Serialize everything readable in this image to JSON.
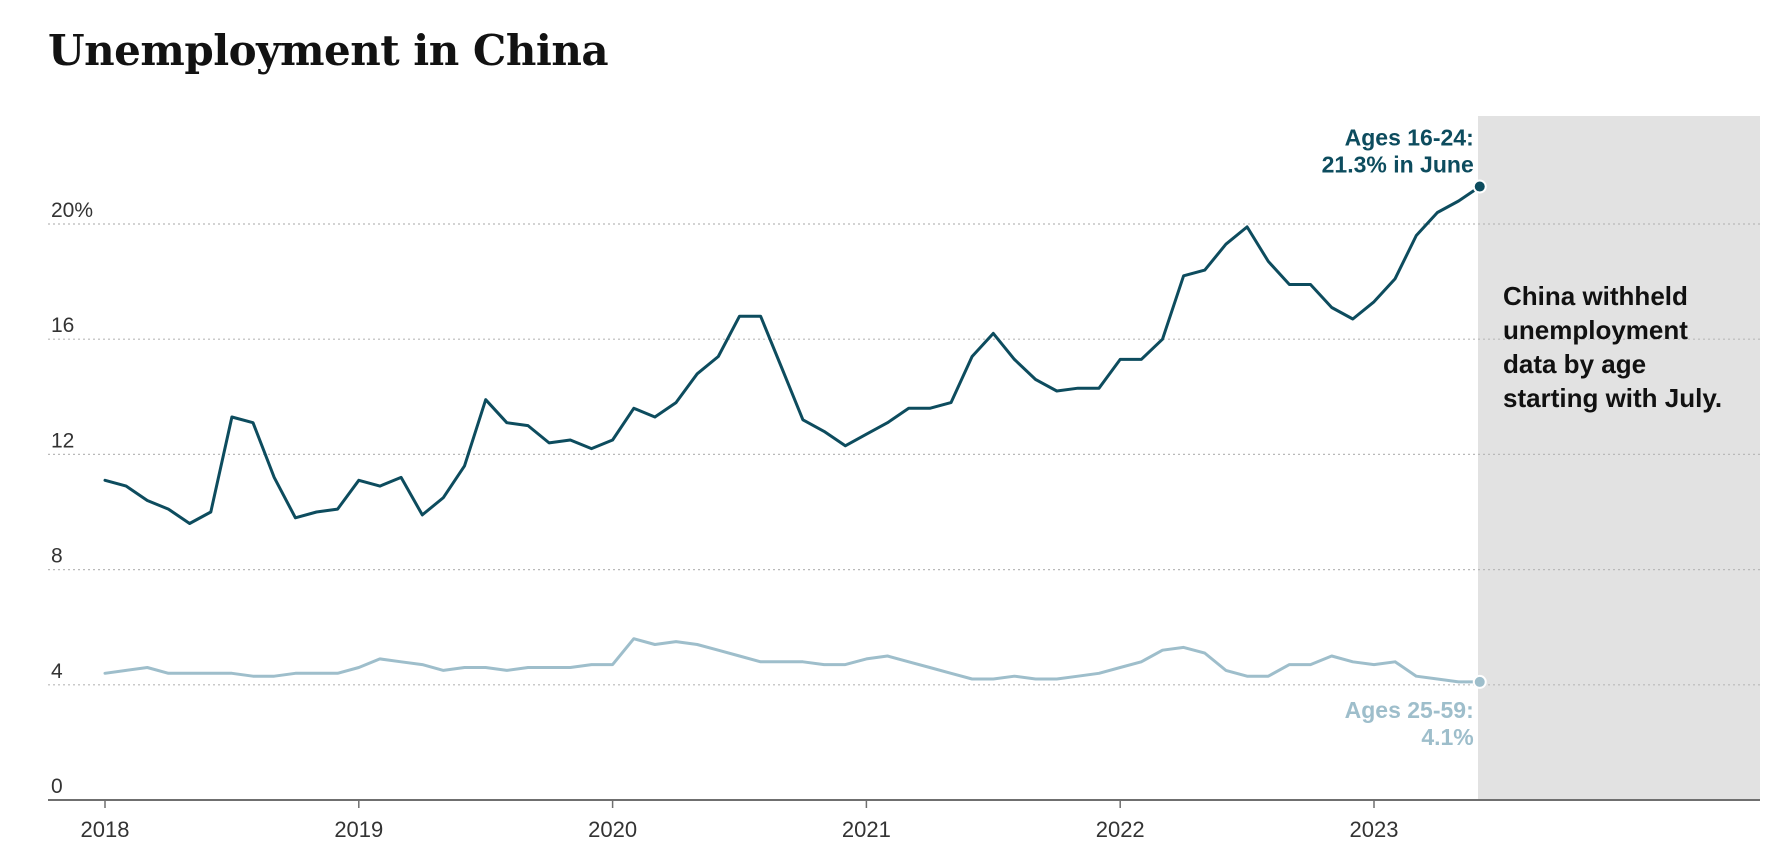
{
  "chart_data": {
    "type": "line",
    "title": "Unemployment in China",
    "xlabel": "",
    "ylabel": "",
    "ylim": [
      0,
      24
    ],
    "y_ticks": [
      "0",
      "4",
      "8",
      "12",
      "16",
      "20%"
    ],
    "y_tick_values": [
      0,
      4,
      8,
      12,
      16,
      20
    ],
    "x_ticks": [
      "2018",
      "2019",
      "2020",
      "2021",
      "2022",
      "2023"
    ],
    "x_start": "2018-01",
    "grid": true,
    "series": [
      {
        "name": "Ages 16-24",
        "color": "#0d4c5e",
        "end_label": [
          "Ages 16-24:",
          "21.3% in June"
        ],
        "values": [
          11.1,
          10.9,
          10.4,
          10.1,
          9.6,
          10.0,
          13.3,
          13.1,
          11.2,
          9.8,
          10.0,
          10.1,
          11.1,
          10.9,
          11.2,
          9.9,
          10.5,
          11.6,
          13.9,
          13.1,
          13.0,
          12.4,
          12.5,
          12.2,
          12.5,
          13.6,
          13.3,
          13.8,
          14.8,
          15.4,
          16.8,
          16.8,
          15.0,
          13.2,
          12.8,
          12.3,
          12.7,
          13.1,
          13.6,
          13.6,
          13.8,
          15.4,
          16.2,
          15.3,
          14.6,
          14.2,
          14.3,
          14.3,
          15.3,
          15.3,
          16.0,
          18.2,
          18.4,
          19.3,
          19.9,
          18.7,
          17.9,
          17.9,
          17.1,
          16.7,
          17.3,
          18.1,
          19.6,
          20.4,
          20.8,
          21.3
        ]
      },
      {
        "name": "Ages 25-59",
        "color": "#9ebecb",
        "end_label": [
          "Ages 25-59:",
          "4.1%"
        ],
        "values": [
          4.4,
          4.5,
          4.6,
          4.4,
          4.4,
          4.4,
          4.4,
          4.3,
          4.3,
          4.4,
          4.4,
          4.4,
          4.6,
          4.9,
          4.8,
          4.7,
          4.5,
          4.6,
          4.6,
          4.5,
          4.6,
          4.6,
          4.6,
          4.7,
          4.7,
          5.6,
          5.4,
          5.5,
          5.4,
          5.2,
          5.0,
          4.8,
          4.8,
          4.8,
          4.7,
          4.7,
          4.9,
          5.0,
          4.8,
          4.6,
          4.4,
          4.2,
          4.2,
          4.3,
          4.2,
          4.2,
          4.3,
          4.4,
          4.6,
          4.8,
          5.2,
          5.3,
          5.1,
          4.5,
          4.3,
          4.3,
          4.7,
          4.7,
          5.0,
          4.8,
          4.7,
          4.8,
          4.3,
          4.2,
          4.1,
          4.1
        ]
      }
    ],
    "annotation": [
      "China withheld",
      "unemployment",
      "data by age",
      "starting with July."
    ]
  }
}
